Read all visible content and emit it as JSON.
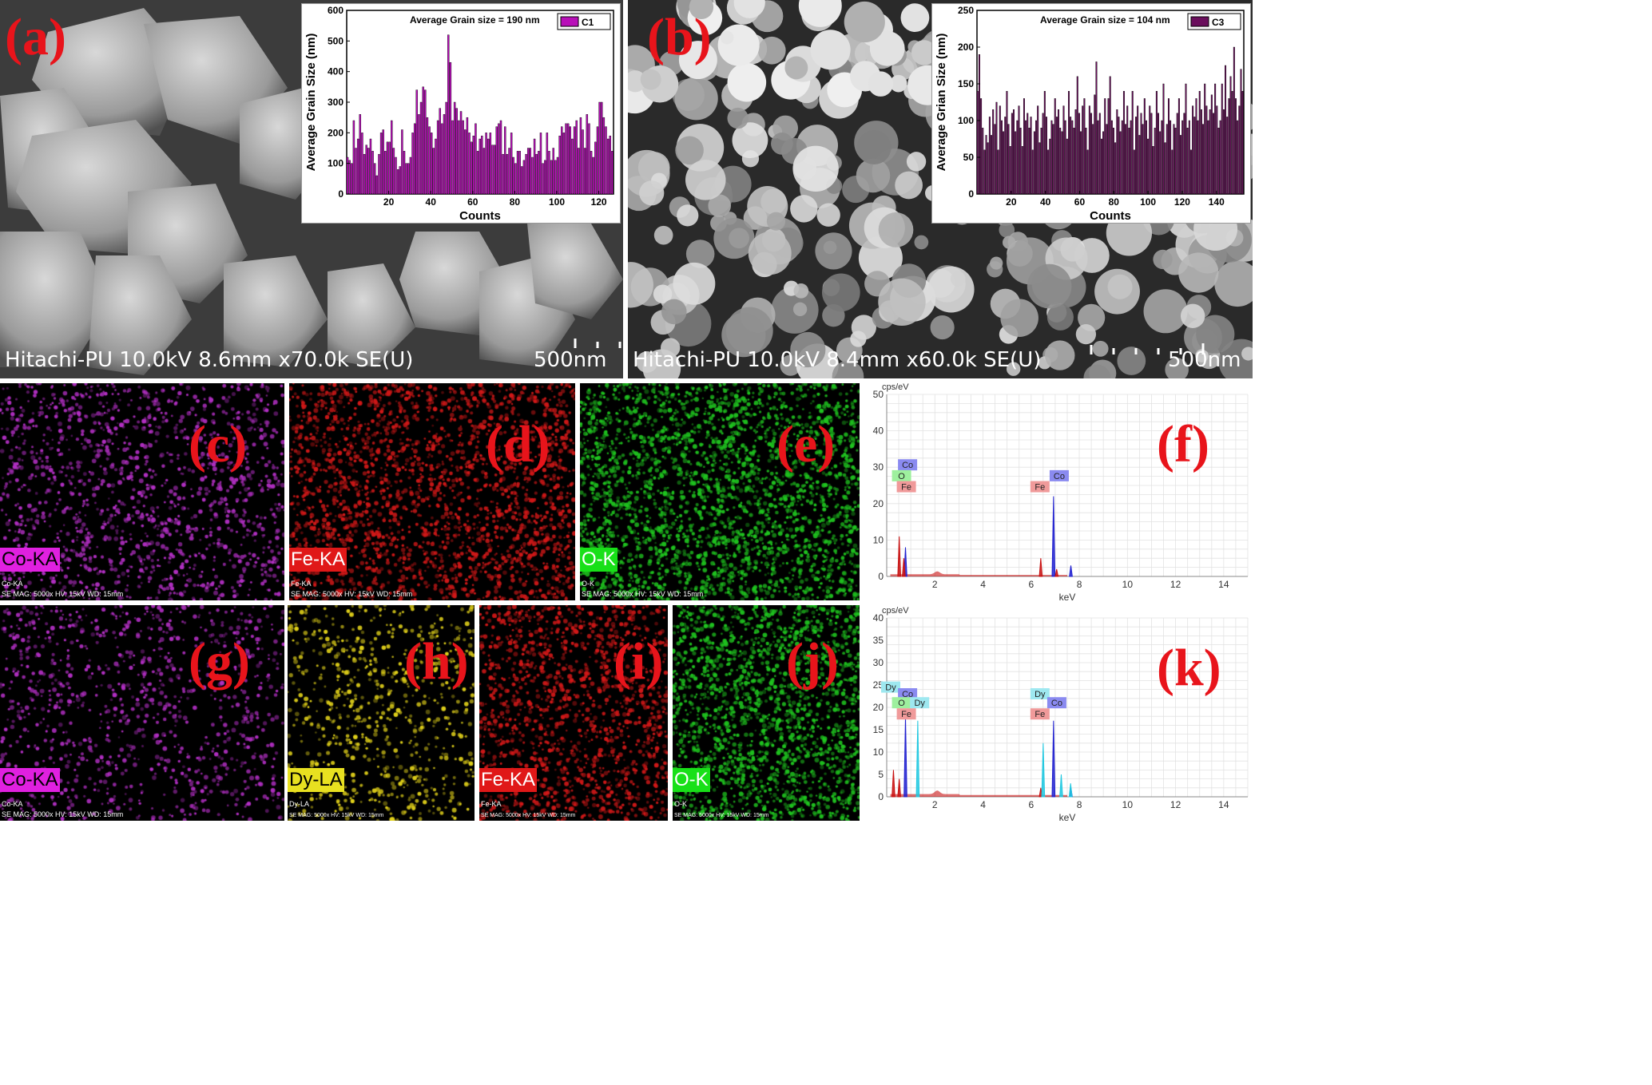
{
  "panels": {
    "a": {
      "letter": "(a)",
      "footer": "Hitachi-PU 10.0kV 8.6mm x70.0k SE(U)",
      "scale": "500nm"
    },
    "b": {
      "letter": "(b)",
      "footer": "Hitachi-PU 10.0kV 8.4mm x60.0k SE(U)",
      "scale": "500nm"
    },
    "c": {
      "letter": "(c)",
      "tag": "Co-KA",
      "sub": "Co-KA",
      "foot": "SE  MAG: 5000x  HV: 15kV  WD: 15mm",
      "color": "#b12fc2"
    },
    "d": {
      "letter": "(d)",
      "tag": "Fe-KA",
      "sub": "Fe-KA",
      "foot": "SE  MAG: 5000x  HV: 15kV  WD: 15mm",
      "color": "#d01818"
    },
    "e": {
      "letter": "(e)",
      "tag": "O-K",
      "sub": "O-K",
      "foot": "SE  MAG: 5000x  HV: 15kV  WD: 15mm",
      "color": "#1fc21f"
    },
    "f": {
      "letter": "(f)"
    },
    "g": {
      "letter": "(g)",
      "tag": "Co-KA",
      "sub": "Co-KA",
      "foot": "SE  MAG: 5000x  HV: 15kV  WD: 15mm",
      "color": "#b12fc2"
    },
    "h": {
      "letter": "(h)",
      "tag": "Dy-LA",
      "sub": "Dy-LA",
      "foot": "SE  MAG: 5000x  HV: 15kV  WD: 15mm",
      "color": "#e0d01a"
    },
    "i": {
      "letter": "(i)",
      "tag": "Fe-KA",
      "sub": "Fe-KA",
      "foot": "SE  MAG: 5000x  HV: 15kV  WD: 15mm",
      "color": "#d01818"
    },
    "j": {
      "letter": "(j)",
      "tag": "O-K",
      "sub": "O-K",
      "foot": "SE  MAG: 5000x  HV: 15kV  WD: 15mm",
      "color": "#1fc21f"
    },
    "k": {
      "letter": "(k)"
    }
  },
  "chart_data": [
    {
      "type": "bar",
      "id": "inset-a",
      "title": "Average Grain size = 190 nm",
      "legend": "C1",
      "legend_placement": "top-right",
      "xlabel": "Counts",
      "ylabel": "Average Grain Size (nm)",
      "xlim": [
        0,
        127
      ],
      "ylim": [
        0,
        600
      ],
      "xticks": [
        20,
        40,
        60,
        80,
        100,
        120
      ],
      "yticks": [
        0,
        100,
        200,
        300,
        400,
        500,
        600
      ],
      "color": "#b80fb8",
      "values": [
        120,
        110,
        100,
        240,
        150,
        180,
        260,
        200,
        130,
        160,
        150,
        180,
        140,
        100,
        60,
        130,
        200,
        210,
        140,
        170,
        170,
        240,
        150,
        120,
        80,
        90,
        210,
        140,
        100,
        100,
        120,
        200,
        230,
        340,
        260,
        300,
        350,
        340,
        250,
        220,
        200,
        150,
        180,
        240,
        280,
        230,
        260,
        300,
        520,
        430,
        240,
        300,
        280,
        240,
        270,
        240,
        210,
        250,
        200,
        170,
        190,
        230,
        140,
        180,
        190,
        150,
        200,
        180,
        200,
        160,
        160,
        220,
        230,
        240,
        130,
        220,
        130,
        150,
        200,
        120,
        100,
        140,
        140,
        90,
        110,
        130,
        150,
        150,
        120,
        180,
        130,
        140,
        200,
        100,
        110,
        200,
        140,
        110,
        150,
        110,
        120,
        190,
        220,
        200,
        230,
        230,
        220,
        180,
        220,
        240,
        150,
        250,
        210,
        150,
        260,
        230,
        140,
        120,
        170,
        220,
        300,
        300,
        250,
        220,
        180,
        190,
        140
      ]
    },
    {
      "type": "bar",
      "id": "inset-b",
      "title": "Average Grain size = 104 nm",
      "legend": "C3",
      "legend_placement": "top-right",
      "xlabel": "Counts",
      "ylabel": "Average Grian Size (nm)",
      "xlim": [
        0,
        156
      ],
      "ylim": [
        0,
        250
      ],
      "xticks": [
        20,
        40,
        60,
        80,
        100,
        120,
        140
      ],
      "yticks": [
        0,
        50,
        100,
        150,
        200,
        250
      ],
      "color": "#6a0e5c",
      "values": [
        140,
        190,
        130,
        90,
        60,
        80,
        70,
        105,
        80,
        115,
        95,
        125,
        60,
        120,
        100,
        85,
        105,
        140,
        95,
        65,
        110,
        115,
        85,
        100,
        120,
        90,
        65,
        130,
        100,
        110,
        90,
        105,
        60,
        85,
        100,
        120,
        70,
        90,
        110,
        140,
        105,
        60,
        75,
        100,
        95,
        130,
        105,
        115,
        90,
        85,
        120,
        100,
        75,
        140,
        105,
        100,
        90,
        115,
        160,
        110,
        85,
        120,
        130,
        90,
        60,
        120,
        110,
        95,
        135,
        180,
        100,
        110,
        75,
        85,
        130,
        95,
        130,
        160,
        100,
        90,
        70,
        115,
        105,
        85,
        100,
        140,
        95,
        120,
        90,
        100,
        140,
        60,
        105,
        120,
        80,
        110,
        95,
        130,
        100,
        75,
        120,
        110,
        65,
        90,
        140,
        110,
        85,
        100,
        150,
        70,
        95,
        130,
        100,
        60,
        95,
        90,
        110,
        130,
        80,
        100,
        110,
        150,
        90,
        100,
        60,
        120,
        105,
        130,
        100,
        140,
        115,
        95,
        150,
        120,
        100,
        115,
        135,
        110,
        150,
        120,
        90,
        100,
        150,
        115,
        175,
        105,
        130,
        160,
        140,
        200,
        130,
        100,
        120,
        170,
        140
      ]
    },
    {
      "type": "line",
      "id": "eds-f",
      "ylabel": "cps/eV",
      "xlabel": "keV",
      "xlim": [
        0,
        15
      ],
      "ylim": [
        0,
        50
      ],
      "xticks": [
        2,
        4,
        6,
        8,
        10,
        12,
        14
      ],
      "yticks": [
        0,
        10,
        20,
        30,
        40,
        50
      ],
      "grid": true,
      "peaks": [
        {
          "element": "O",
          "energy": 0.52,
          "height": 11,
          "color": "#c81010"
        },
        {
          "element": "Co",
          "energy": 0.78,
          "height": 8,
          "color": "#2020d0"
        },
        {
          "element": "Fe",
          "energy": 0.71,
          "height": 5,
          "color": "#c81010"
        },
        {
          "element": "Fe",
          "energy": 6.4,
          "height": 5,
          "color": "#c81010"
        },
        {
          "element": "Co",
          "energy": 6.93,
          "height": 22,
          "color": "#2020d0"
        },
        {
          "element": "Fe",
          "energy": 7.06,
          "height": 2,
          "color": "#c81010"
        },
        {
          "element": "Co",
          "energy": 7.65,
          "height": 3,
          "color": "#2020d0"
        }
      ],
      "labels": [
        {
          "text": "Co",
          "energy": 0.8,
          "y": 30,
          "color": "#8a8af0"
        },
        {
          "text": "O",
          "energy": 0.55,
          "y": 27,
          "color": "#9ef09e"
        },
        {
          "text": "Fe",
          "energy": 0.75,
          "y": 24,
          "color": "#f09a9a"
        },
        {
          "text": "Co",
          "energy": 7.1,
          "y": 27,
          "color": "#8a8af0"
        },
        {
          "text": "Fe",
          "energy": 6.3,
          "y": 24,
          "color": "#f09a9a"
        }
      ]
    },
    {
      "type": "line",
      "id": "eds-k",
      "ylabel": "cps/eV",
      "xlabel": "keV",
      "xlim": [
        0,
        15
      ],
      "ylim": [
        0,
        40
      ],
      "xticks": [
        2,
        4,
        6,
        8,
        10,
        12,
        14
      ],
      "yticks": [
        0,
        5,
        10,
        15,
        20,
        25,
        30,
        35,
        40
      ],
      "grid": true,
      "peaks": [
        {
          "element": "Dy",
          "energy": 0.28,
          "height": 6,
          "color": "#c81010"
        },
        {
          "element": "O",
          "energy": 0.52,
          "height": 4,
          "color": "#c81010"
        },
        {
          "element": "Co",
          "energy": 0.78,
          "height": 18,
          "color": "#2020d0"
        },
        {
          "element": "Dy",
          "energy": 1.29,
          "height": 17,
          "color": "#20c8e0"
        },
        {
          "element": "Fe",
          "energy": 6.4,
          "height": 2,
          "color": "#c81010"
        },
        {
          "element": "Dy",
          "energy": 6.5,
          "height": 12,
          "color": "#20c8e0"
        },
        {
          "element": "Co",
          "energy": 6.93,
          "height": 17,
          "color": "#2020d0"
        },
        {
          "element": "Dy",
          "energy": 7.25,
          "height": 5,
          "color": "#20c8e0"
        },
        {
          "element": "Co",
          "energy": 7.65,
          "height": 2,
          "color": "#2020d0"
        },
        {
          "element": "Dy",
          "energy": 7.64,
          "height": 3,
          "color": "#20c8e0"
        }
      ],
      "labels": [
        {
          "text": "Dy",
          "energy": 0.1,
          "y": 24,
          "color": "#9ee8f0"
        },
        {
          "text": "Co",
          "energy": 0.8,
          "y": 22.5,
          "color": "#8a8af0"
        },
        {
          "text": "O",
          "energy": 0.55,
          "y": 20.5,
          "color": "#9ef09e"
        },
        {
          "text": "Dy",
          "energy": 1.3,
          "y": 20.5,
          "color": "#9ee8f0"
        },
        {
          "text": "Fe",
          "energy": 0.75,
          "y": 18,
          "color": "#f09a9a"
        },
        {
          "text": "Dy",
          "energy": 6.3,
          "y": 22.5,
          "color": "#9ee8f0"
        },
        {
          "text": "Co",
          "energy": 7.0,
          "y": 20.5,
          "color": "#8a8af0"
        },
        {
          "text": "Fe",
          "energy": 6.3,
          "y": 18,
          "color": "#f09a9a"
        }
      ]
    }
  ]
}
